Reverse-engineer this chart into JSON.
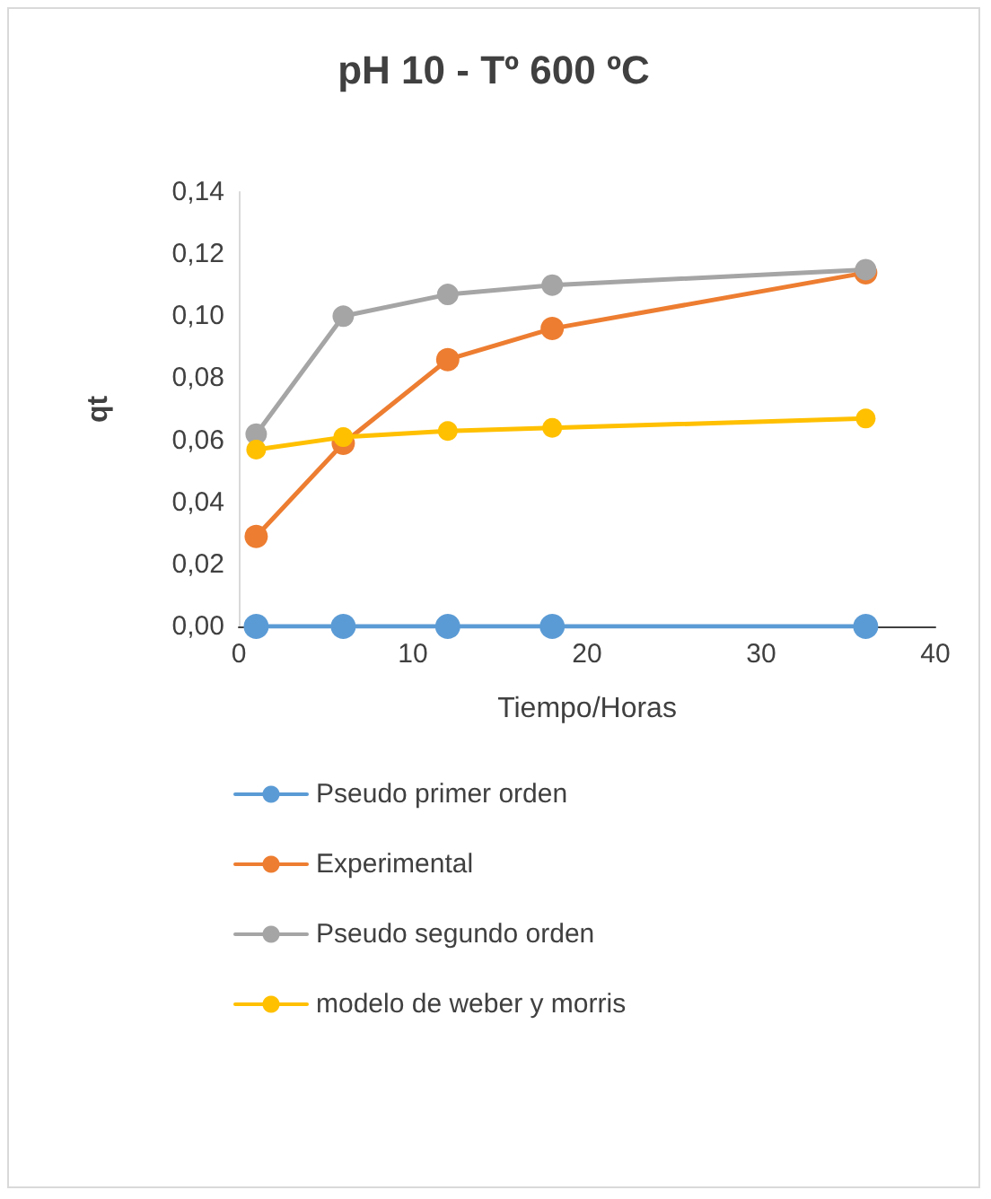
{
  "chart_data": {
    "type": "line",
    "title": "pH 10 - Tº 600 ºC",
    "xlabel": "Tiempo/Horas",
    "ylabel": "qt",
    "x": [
      1,
      6,
      12,
      18,
      36
    ],
    "series": [
      {
        "name": "Pseudo primer orden",
        "color": "#5b9bd5",
        "values": [
          0,
          0,
          0,
          0,
          0
        ]
      },
      {
        "name": "Experimental",
        "color": "#ed7d31",
        "values": [
          0.029,
          0.059,
          0.086,
          0.096,
          0.114
        ]
      },
      {
        "name": "Pseudo segundo orden",
        "color": "#a5a5a5",
        "values": [
          0.062,
          0.1,
          0.107,
          0.11,
          0.115
        ]
      },
      {
        "name": "modelo de weber y morris",
        "color": "#ffc000",
        "values": [
          0.057,
          0.061,
          0.063,
          0.064,
          0.067
        ]
      }
    ],
    "xlim": [
      0,
      40
    ],
    "xticks": [
      0,
      10,
      20,
      30,
      40
    ],
    "ylim": [
      0,
      0.14
    ],
    "yticks": [
      {
        "value": 0,
        "label": "0,00"
      },
      {
        "value": 0.02,
        "label": "0,02"
      },
      {
        "value": 0.04,
        "label": "0,04"
      },
      {
        "value": 0.06,
        "label": "0,06"
      },
      {
        "value": 0.08,
        "label": "0,08"
      },
      {
        "value": 0.1,
        "label": "0,10"
      },
      {
        "value": 0.12,
        "label": "0,12"
      },
      {
        "value": 0.14,
        "label": "0,14"
      }
    ],
    "grid": false,
    "legend": "bottom",
    "marker": "circle",
    "line_style": "solid"
  }
}
